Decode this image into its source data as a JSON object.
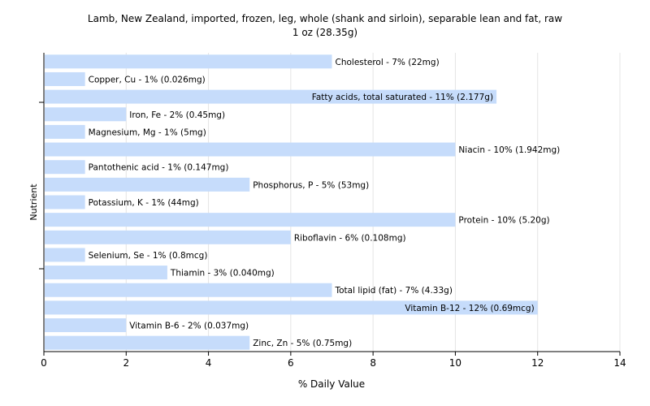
{
  "chart_data": {
    "type": "bar",
    "orientation": "horizontal",
    "title": "Lamb, New Zealand, imported, frozen, leg, whole (shank and sirloin), separable lean and fat, raw",
    "subtitle": "1 oz (28.35g)",
    "xlabel": "% Daily Value",
    "ylabel": "Nutrient",
    "xlim": [
      0,
      14
    ],
    "xticks": [
      "0",
      "2",
      "4",
      "6",
      "8",
      "10",
      "12",
      "14"
    ],
    "grid": true,
    "bar_color": "#c6dcfb",
    "categories": [
      "Cholesterol",
      "Copper, Cu",
      "Fatty acids, total saturated",
      "Iron, Fe",
      "Magnesium, Mg",
      "Niacin",
      "Pantothenic acid",
      "Phosphorus, P",
      "Potassium, K",
      "Protein",
      "Riboflavin",
      "Selenium, Se",
      "Thiamin",
      "Total lipid (fat)",
      "Vitamin B-12",
      "Vitamin B-6",
      "Zinc, Zn"
    ],
    "values": [
      7,
      1,
      11,
      2,
      1,
      10,
      1,
      5,
      1,
      10,
      6,
      1,
      3,
      7,
      12,
      2,
      5
    ],
    "labels": [
      "Cholesterol - 7% (22mg)",
      "Copper, Cu - 1% (0.026mg)",
      "Fatty acids, total saturated - 11% (2.177g)",
      "Iron, Fe - 2% (0.45mg)",
      "Magnesium, Mg - 1% (5mg)",
      "Niacin - 10% (1.942mg)",
      "Pantothenic acid - 1% (0.147mg)",
      "Phosphorus, P - 5% (53mg)",
      "Potassium, K - 1% (44mg)",
      "Protein - 10% (5.20g)",
      "Riboflavin - 6% (0.108mg)",
      "Selenium, Se - 1% (0.8mcg)",
      "Thiamin - 3% (0.040mg)",
      "Total lipid (fat) - 7% (4.33g)",
      "Vitamin B-12 - 12% (0.69mcg)",
      "Vitamin B-6 - 2% (0.037mg)",
      "Zinc, Zn - 5% (0.75mg)"
    ]
  }
}
